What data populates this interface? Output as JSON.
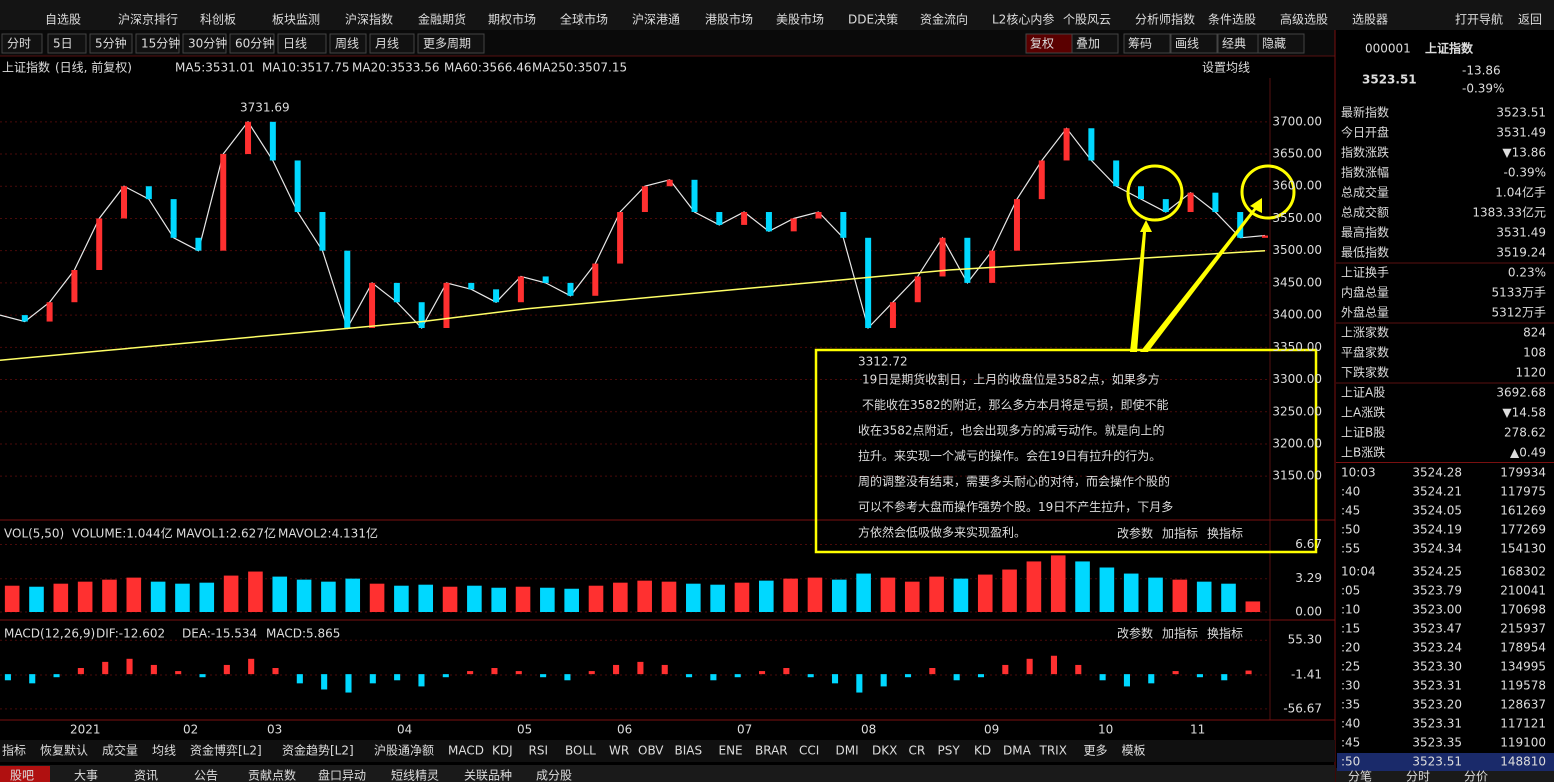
{
  "top_menu": [
    "自选股",
    "沪深京排行",
    "科创板",
    "板块监测",
    "沪深指数",
    "金融期货",
    "期权市场",
    "全球市场",
    "沪深港通",
    "港股市场",
    "美股市场",
    "DDE决策",
    "资金流向",
    "L2核心内参",
    "个股风云",
    "分析师指数",
    "条件选股",
    "高级选股",
    "选股器",
    "打开导航",
    "返回"
  ],
  "periods": [
    "分时",
    "5日",
    "5分钟",
    "15分钟",
    "30分钟",
    "60分钟",
    "日线",
    "周线",
    "月线",
    "更多周期"
  ],
  "tools": [
    "复权",
    "叠加",
    "筹码",
    "画线",
    "经典",
    "隐藏"
  ],
  "indicator_line": {
    "name": "上证指数",
    "mode": "(日线, 前复权)",
    "ma": [
      {
        "label": "MA5:3531.01",
        "color": "#ffffff"
      },
      {
        "label": "MA10:3517.75",
        "color": "#ffff00"
      },
      {
        "label": "MA20:3533.56",
        "color": "#ff00ff"
      },
      {
        "label": "MA60:3566.46",
        "color": "#cccccc"
      },
      {
        "label": "MA250:3507.15",
        "color": "#ffffff"
      }
    ],
    "setting": "设置均线"
  },
  "price_chart": {
    "type": "line",
    "high_label": "3731.69",
    "low_label": "3312.72",
    "ylim": [
      3082,
      3768
    ],
    "yticks": [
      {
        "value": 3700,
        "label": "3700.00"
      },
      {
        "value": 3650,
        "label": "3650.00"
      },
      {
        "value": 3600,
        "label": "3600.00"
      },
      {
        "value": 3550,
        "label": "3550.00"
      },
      {
        "value": 3500,
        "label": "3500.00"
      },
      {
        "value": 3450,
        "label": "3450.00"
      },
      {
        "value": 3400,
        "label": "3400.00"
      },
      {
        "value": 3350,
        "label": "3350.00"
      },
      {
        "value": 3300,
        "label": "3300.00"
      },
      {
        "value": 3250,
        "label": "3250.00"
      },
      {
        "value": 3200,
        "label": "3200.00"
      },
      {
        "value": 3150,
        "label": "3150.00"
      }
    ],
    "series": [
      {
        "color": "#e8e8e8",
        "values": [
          3400,
          3390,
          3420,
          3470,
          3550,
          3600,
          3580,
          3520,
          3500,
          3650,
          3700,
          3640,
          3560,
          3500,
          3380,
          3450,
          3420,
          3380,
          3450,
          3440,
          3420,
          3460,
          3450,
          3430,
          3480,
          3560,
          3600,
          3610,
          3560,
          3540,
          3560,
          3530,
          3550,
          3560,
          3520,
          3380,
          3420,
          3460,
          3520,
          3450,
          3500,
          3580,
          3640,
          3690,
          3640,
          3600,
          3580,
          3560,
          3590,
          3560,
          3520,
          3523.51
        ]
      },
      {
        "color": "#ffff66",
        "values": [
          3330,
          3345,
          3360,
          3375,
          3390,
          3410,
          3425,
          3440,
          3455,
          3470,
          3480,
          3490,
          3500
        ]
      }
    ]
  },
  "volume": {
    "type": "bar",
    "title": "VOL(5,50)",
    "items": [
      {
        "label": "VOLUME:1.044亿",
        "color": "#ffffff"
      },
      {
        "label": "MAVOL1:2.627亿",
        "color": "#ffff00"
      },
      {
        "label": "MAVOL2:4.131亿",
        "color": "#ff00ff"
      }
    ],
    "ylim": [
      0,
      8.9
    ],
    "yticks": [
      6.67,
      3.29,
      {
        "value": 0,
        "label": "0.00"
      }
    ],
    "values": [
      2.6,
      2.5,
      2.8,
      3.0,
      3.2,
      3.4,
      3.0,
      2.8,
      2.9,
      3.6,
      4.0,
      3.5,
      3.2,
      3.0,
      3.3,
      2.8,
      2.6,
      2.7,
      2.5,
      2.6,
      2.4,
      2.5,
      2.4,
      2.3,
      2.6,
      2.9,
      3.1,
      3.0,
      2.8,
      2.7,
      2.9,
      3.1,
      3.3,
      3.4,
      3.2,
      3.8,
      3.4,
      3.0,
      3.5,
      3.3,
      3.7,
      4.2,
      5.0,
      5.6,
      5.0,
      4.4,
      3.8,
      3.4,
      3.2,
      3.0,
      2.8,
      1.044
    ]
  },
  "macd": {
    "type": "bar",
    "title": "MACD(12,26,9)",
    "items": [
      {
        "label": "DIF:-12.602",
        "color": "#ffffff"
      },
      {
        "label": "DEA:-15.534",
        "color": "#ffff00"
      },
      {
        "label": "MACD:5.865",
        "color": "#ff00ff"
      }
    ],
    "ylim": [
      -71.5,
      85
    ],
    "yticks": [
      {
        "value": 55.3,
        "label": "55.30"
      },
      -1.41,
      -56.67
    ],
    "values": [
      -10,
      -15,
      -5,
      10,
      20,
      25,
      15,
      5,
      -5,
      15,
      25,
      10,
      -15,
      -25,
      -30,
      -15,
      -10,
      -20,
      -5,
      5,
      10,
      5,
      -5,
      -10,
      5,
      15,
      20,
      15,
      -5,
      -10,
      -5,
      5,
      10,
      -5,
      -15,
      -30,
      -20,
      -5,
      10,
      -10,
      -5,
      15,
      25,
      30,
      15,
      -10,
      -20,
      -15,
      5,
      -5,
      -10,
      5.865
    ]
  },
  "panel_buttons": [
    "改参数",
    "加指标",
    "换指标"
  ],
  "months": [
    "2021",
    "02",
    "03",
    "04",
    "05",
    "06",
    "07",
    "08",
    "09",
    "10",
    "11"
  ],
  "bottom_indicators": [
    "指标",
    "恢复默认",
    "成交量",
    "均线",
    "资金博弈[L2]",
    "资金趋势[L2]",
    "沪股通净额",
    "MACD",
    "KDJ",
    "RSI",
    "BOLL",
    "WR",
    "OBV",
    "BIAS",
    "ENE",
    "BRAR",
    "CCI",
    "DMI",
    "DKX",
    "CR",
    "PSY",
    "KD",
    "DMA",
    "TRIX",
    "更多",
    "模板"
  ],
  "bottom_tabs": [
    "股吧",
    "大事",
    "资讯",
    "公告",
    "贡献点数",
    "盘口异动",
    "短线精灵",
    "关联品种",
    "成分股"
  ],
  "annotation": [
    "19日是期货收割日，上月的收盘位是3582点，如果多方",
    "不能收在3582的附近，那么多方本月将是亏损，即使不能",
    "收在3582点附近，也会出现多方的减亏动作。就是向上的",
    "拉升。来实现一个减亏的操作。会在19日有拉升的行为。",
    "周的调整没有结束，需要多头耐心的对待，而会操作个股的",
    "可以不参考大盘而操作强势个股。19日不产生拉升，下月多",
    "方依然会低吸做多来实现盈利。"
  ],
  "quote": {
    "code": "000001",
    "name": "上证指数",
    "price": "3523.51",
    "change": "-13.86",
    "pct": "-0.39%"
  },
  "quote_rows": [
    {
      "label": "最新指数",
      "value": "3523.51",
      "color": "#00e000"
    },
    {
      "label": "今日开盘",
      "value": "3531.49",
      "color": "#00e000"
    },
    {
      "label": "指数涨跌",
      "value": "▼13.86",
      "color": "#00e000"
    },
    {
      "label": "指数涨幅",
      "value": "-0.39%",
      "color": "#00e000"
    },
    {
      "label": "总成交量",
      "value": "1.04亿手",
      "color": "#ffffff"
    },
    {
      "label": "总成交额",
      "value": "1383.33亿元",
      "color": "#00e000"
    },
    {
      "label": "最高指数",
      "value": "3531.49",
      "color": "#00e000"
    },
    {
      "label": "最低指数",
      "value": "3519.24",
      "color": "#00e000"
    },
    {
      "label": "上证换手",
      "value": "0.23%",
      "color": "#ffffff"
    },
    {
      "label": "内盘总量",
      "value": "5133万手",
      "color": "#00e000"
    },
    {
      "label": "外盘总量",
      "value": "5312万手",
      "color": "#ff4040"
    },
    {
      "label": "上涨家数",
      "value": "824",
      "color": "#ff4040"
    },
    {
      "label": "平盘家数",
      "value": "108",
      "color": "#ffffff"
    },
    {
      "label": "下跌家数",
      "value": "1120",
      "color": "#00e000"
    },
    {
      "label": "上证A股",
      "value": "3692.68",
      "color": "#00e000"
    },
    {
      "label": "上A涨跌",
      "value": "▼14.58",
      "color": "#00e000"
    },
    {
      "label": "上证B股",
      "value": "278.62",
      "color": "#ff4040"
    },
    {
      "label": "上B涨跌",
      "value": "▲0.49",
      "color": "#ff4040"
    }
  ],
  "ticks": [
    [
      "10:03",
      "3524.28",
      "179934"
    ],
    [
      ":40",
      "3524.21",
      "117975"
    ],
    [
      ":45",
      "3524.05",
      "161269"
    ],
    [
      ":50",
      "3524.19",
      "177269"
    ],
    [
      ":55",
      "3524.34",
      "154130"
    ],
    [
      "10:04",
      "3524.25",
      "168302"
    ],
    [
      ":05",
      "3523.79",
      "210041"
    ],
    [
      ":10",
      "3523.00",
      "170698"
    ],
    [
      ":15",
      "3523.47",
      "215937"
    ],
    [
      ":20",
      "3523.24",
      "178954"
    ],
    [
      ":25",
      "3523.30",
      "134995"
    ],
    [
      ":30",
      "3523.31",
      "119578"
    ],
    [
      ":35",
      "3523.20",
      "128637"
    ],
    [
      ":40",
      "3523.31",
      "117121"
    ],
    [
      ":45",
      "3523.35",
      "119100"
    ],
    [
      ":50",
      "3523.51",
      "148810"
    ]
  ],
  "right_tabs": [
    "分笔",
    "分时",
    "分价"
  ]
}
